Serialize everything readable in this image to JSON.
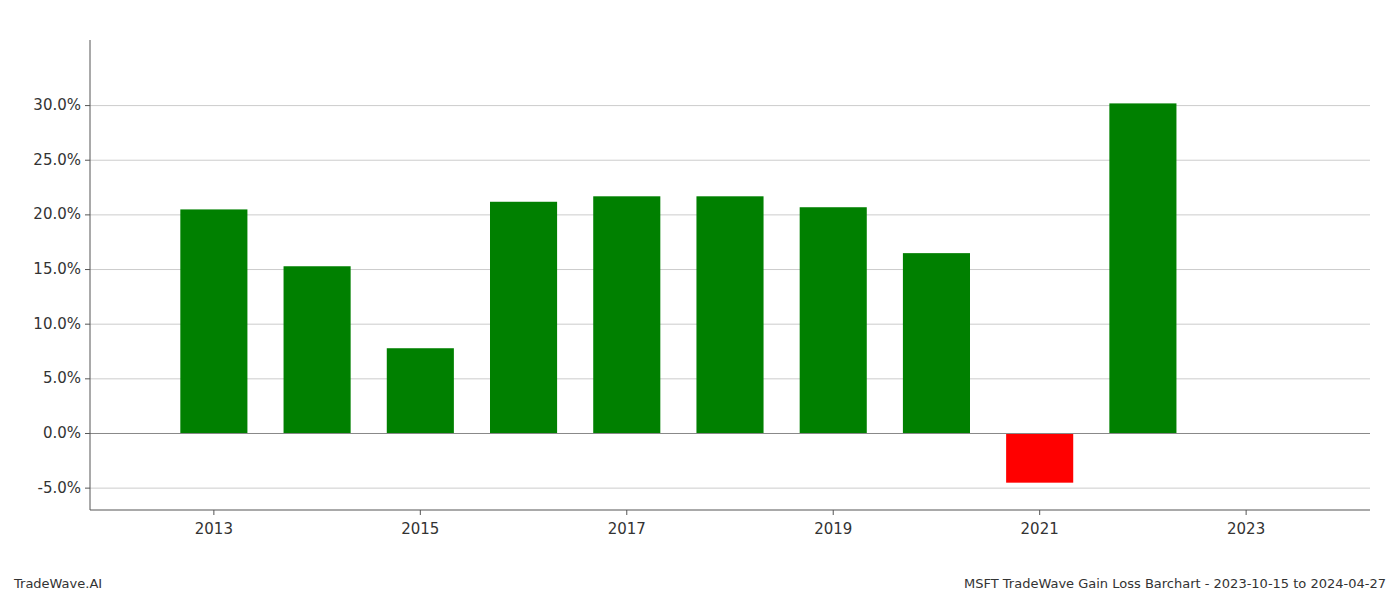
{
  "chart_data": {
    "type": "bar",
    "x": [
      2013,
      2014,
      2015,
      2016,
      2017,
      2018,
      2019,
      2020,
      2021,
      2022
    ],
    "values": [
      0.205,
      0.153,
      0.078,
      0.212,
      0.217,
      0.217,
      0.207,
      0.165,
      -0.045,
      0.302
    ],
    "colors": [
      "#008000",
      "#008000",
      "#008000",
      "#008000",
      "#008000",
      "#008000",
      "#008000",
      "#008000",
      "#ff0000",
      "#008000"
    ],
    "xlim": [
      2011.8,
      2024.2
    ],
    "xticks": [
      2013,
      2015,
      2017,
      2019,
      2021,
      2023
    ],
    "ylim": [
      -0.07,
      0.36
    ],
    "yticks": [
      {
        "value": -0.05,
        "label": "-5.0%"
      },
      {
        "value": 0.0,
        "label": "0.0%"
      },
      {
        "value": 0.05,
        "label": "5.0%"
      },
      {
        "value": 0.1,
        "label": "10.0%"
      },
      {
        "value": 0.15,
        "label": "15.0%"
      },
      {
        "value": 0.2,
        "label": "20.0%"
      },
      {
        "value": 0.25,
        "label": "25.0%"
      },
      {
        "value": 0.3,
        "label": "30.0%"
      }
    ],
    "grid": true,
    "annotations": [
      "TradeWave.AI",
      "MSFT TradeWave Gain Loss Barchart - 2023-10-15 to 2024-04-27"
    ]
  }
}
